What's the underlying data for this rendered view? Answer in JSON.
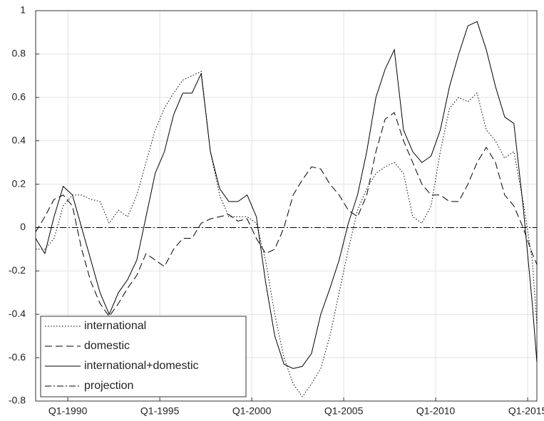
{
  "chart_data": {
    "type": "line",
    "x": [
      1988.25,
      1988.75,
      1989.25,
      1989.75,
      1990.25,
      1990.75,
      1991.25,
      1991.75,
      1992.25,
      1992.75,
      1993.25,
      1993.75,
      1994.25,
      1994.75,
      1995.25,
      1995.75,
      1996.25,
      1996.75,
      1997.25,
      1997.75,
      1998.25,
      1998.75,
      1999.25,
      1999.75,
      2000.25,
      2000.75,
      2001.25,
      2001.75,
      2002.25,
      2002.75,
      2003.25,
      2003.75,
      2004.25,
      2004.75,
      2005.25,
      2005.75,
      2006.25,
      2006.75,
      2007.25,
      2007.75,
      2008.25,
      2008.75,
      2009.25,
      2009.75,
      2010.25,
      2010.75,
      2011.25,
      2011.75,
      2012.25,
      2012.75,
      2013.25,
      2013.75,
      2014.25,
      2014.75,
      2015.25,
      2015.5
    ],
    "series": [
      {
        "name": "international",
        "color": "#000000",
        "dash": "dotted",
        "values": [
          -0.1,
          -0.1,
          -0.05,
          0.1,
          0.15,
          0.15,
          0.13,
          0.12,
          0.02,
          0.08,
          0.05,
          0.15,
          0.3,
          0.45,
          0.55,
          0.62,
          0.68,
          0.7,
          0.72,
          0.35,
          0.15,
          0.05,
          0.05,
          0.05,
          0.02,
          -0.15,
          -0.4,
          -0.6,
          -0.72,
          -0.78,
          -0.72,
          -0.65,
          -0.5,
          -0.3,
          -0.1,
          0.08,
          0.18,
          0.25,
          0.28,
          0.3,
          0.25,
          0.05,
          0.02,
          0.1,
          0.35,
          0.55,
          0.6,
          0.58,
          0.62,
          0.45,
          0.4,
          0.32,
          0.35,
          0.12,
          -0.15,
          -0.45
        ]
      },
      {
        "name": "domestic",
        "color": "#000000",
        "dash": "dashed",
        "values": [
          -0.02,
          0.05,
          0.13,
          0.15,
          0.1,
          -0.1,
          -0.25,
          -0.35,
          -0.41,
          -0.35,
          -0.28,
          -0.22,
          -0.12,
          -0.15,
          -0.18,
          -0.1,
          -0.05,
          -0.05,
          0.02,
          0.04,
          0.05,
          0.06,
          0.03,
          0.04,
          -0.05,
          -0.12,
          -0.1,
          0.0,
          0.15,
          0.22,
          0.28,
          0.27,
          0.2,
          0.15,
          0.08,
          0.05,
          0.15,
          0.35,
          0.5,
          0.53,
          0.4,
          0.3,
          0.2,
          0.15,
          0.15,
          0.12,
          0.12,
          0.2,
          0.3,
          0.37,
          0.3,
          0.15,
          0.1,
          0.0,
          -0.12,
          -0.17
        ]
      },
      {
        "name": "international+domestic",
        "color": "#000000",
        "dash": "solid",
        "values": [
          -0.05,
          -0.12,
          0.05,
          0.19,
          0.15,
          0.0,
          -0.15,
          -0.3,
          -0.4,
          -0.3,
          -0.24,
          -0.15,
          0.05,
          0.25,
          0.35,
          0.52,
          0.62,
          0.62,
          0.71,
          0.35,
          0.18,
          0.12,
          0.12,
          0.15,
          0.05,
          -0.25,
          -0.5,
          -0.63,
          -0.65,
          -0.64,
          -0.58,
          -0.4,
          -0.28,
          -0.15,
          0.02,
          0.15,
          0.35,
          0.6,
          0.73,
          0.82,
          0.45,
          0.35,
          0.3,
          0.33,
          0.45,
          0.65,
          0.8,
          0.93,
          0.95,
          0.82,
          0.65,
          0.51,
          0.48,
          0.1,
          -0.35,
          -0.62
        ]
      },
      {
        "name": "projection",
        "color": "#000000",
        "dash": "dashdot",
        "values": [
          0,
          0,
          0,
          0,
          0,
          0,
          0,
          0,
          0,
          0,
          0,
          0,
          0,
          0,
          0,
          0,
          0,
          0,
          0,
          0,
          0,
          0,
          0,
          0,
          0,
          0,
          0,
          0,
          0,
          0,
          0,
          0,
          0,
          0,
          0,
          0,
          0,
          0,
          0,
          0,
          0,
          0,
          0,
          0,
          0,
          0,
          0,
          0,
          0,
          0,
          0,
          0,
          0,
          0,
          0,
          0
        ]
      }
    ],
    "xlim": [
      1988.25,
      2015.5
    ],
    "xticks": [
      {
        "value": 1990,
        "label": "Q1-1990"
      },
      {
        "value": 1995,
        "label": "Q1-1995"
      },
      {
        "value": 2000,
        "label": "Q1-2000"
      },
      {
        "value": 2005,
        "label": "Q1-2005"
      },
      {
        "value": 2010,
        "label": "Q1-2010"
      },
      {
        "value": 2015,
        "label": "Q1-2015"
      }
    ],
    "ylim": [
      -0.8,
      1
    ],
    "yticks": [
      -0.8,
      -0.6,
      -0.4,
      -0.2,
      0,
      0.2,
      0.4,
      0.6,
      0.8,
      1
    ],
    "grid": true,
    "legend": "lower-left"
  }
}
